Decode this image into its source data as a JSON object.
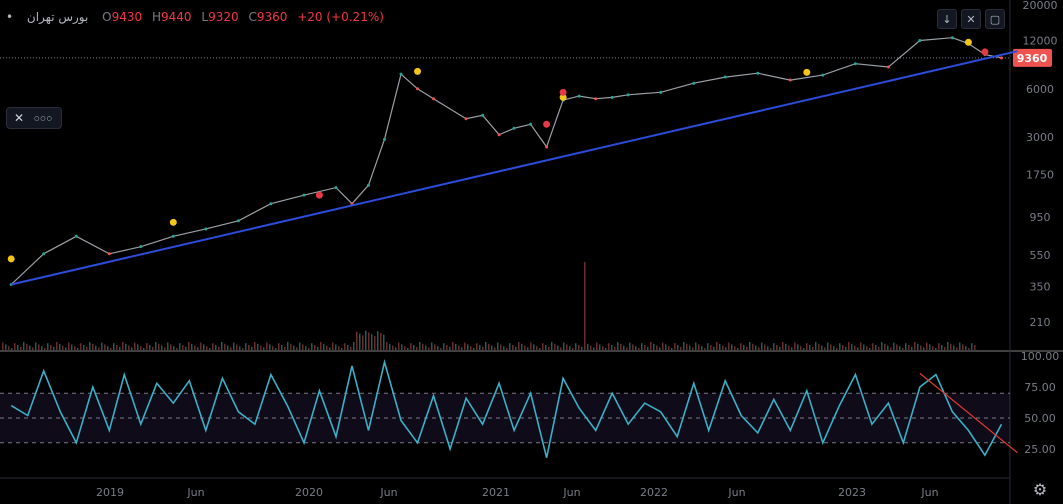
{
  "legend": {
    "symbol": "بورس تهران",
    "dot": "•",
    "open_label": "O",
    "open": "9430",
    "high_label": "H",
    "high": "9440",
    "low_label": "L",
    "low": "9320",
    "close_label": "C",
    "close": "9360",
    "change": "+20 (+0.21%)"
  },
  "toolbar": {
    "close_icon": "✕",
    "more_icon": "○○○"
  },
  "top_icons": {
    "down": "↓",
    "maximize": "✕",
    "square": "▢"
  },
  "settings_icon": "⚙",
  "colors": {
    "up": "#26a69a",
    "down": "#ef5350",
    "trendline": "#2c4cdb",
    "rsi": "#3ab0c8",
    "background": "#000000"
  },
  "chart_data": [
    {
      "type": "line",
      "scale": "log",
      "y_ticks": [
        "20000",
        "12000",
        "6000",
        "3000",
        "1750",
        "950",
        "550",
        "350",
        "210"
      ],
      "current_price": "9360",
      "x_ticks": [
        "2019",
        "Jun",
        "2020",
        "Jun",
        "2021",
        "Jun",
        "2022",
        "Jun",
        "2023",
        "Jun"
      ],
      "series": [
        {
          "x": [
            "2018-08",
            "2018-10",
            "2018-12",
            "2019-02",
            "2019-04",
            "2019-06",
            "2019-08",
            "2019-10",
            "2019-12",
            "2020-02",
            "2020-04",
            "2020-05",
            "2020-06",
            "2020-07",
            "2020-08",
            "2020-09",
            "2020-10",
            "2020-12",
            "2021-01",
            "2021-02",
            "2021-03",
            "2021-04",
            "2021-05",
            "2021-06",
            "2021-07",
            "2021-08",
            "2021-09",
            "2021-10",
            "2021-12",
            "2022-02",
            "2022-04",
            "2022-06",
            "2022-08",
            "2022-10",
            "2022-12",
            "2023-02",
            "2023-04",
            "2023-06",
            "2023-07",
            "2023-08",
            "2023-09"
          ],
          "values": [
            360,
            560,
            720,
            560,
            620,
            720,
            800,
            900,
            1150,
            1300,
            1450,
            1150,
            1500,
            2900,
            7400,
            6000,
            5200,
            3900,
            4100,
            3100,
            3400,
            3600,
            2600,
            5100,
            5400,
            5200,
            5300,
            5500,
            5700,
            6500,
            7100,
            7500,
            6800,
            7300,
            8600,
            8200,
            12000,
            12500,
            11500,
            9800,
            9360
          ]
        }
      ],
      "trendline": {
        "x": [
          "2018-08",
          "2023-10"
        ],
        "values": [
          360,
          10300
        ]
      },
      "markers": {
        "yellow": [
          [
            "2018-08",
            520
          ],
          [
            "2019-06",
            880
          ],
          [
            "2020-09",
            7700
          ],
          [
            "2021-06",
            5300
          ],
          [
            "2022-09",
            7600
          ],
          [
            "2023-07",
            11700
          ]
        ],
        "red": [
          [
            "2020-03",
            1300
          ],
          [
            "2021-06",
            5700
          ],
          [
            "2021-05",
            3600
          ],
          [
            "2023-08",
            10200
          ]
        ]
      }
    },
    {
      "type": "line",
      "y_ticks": [
        "100.00",
        "75.00",
        "50.00",
        "25.00"
      ],
      "ylim": [
        0,
        100
      ],
      "bands": [
        30,
        50,
        70
      ],
      "series": [
        {
          "x": [
            "2018-08",
            "2018-09",
            "2018-10",
            "2018-11",
            "2018-12",
            "2019-01",
            "2019-02",
            "2019-03",
            "2019-04",
            "2019-05",
            "2019-06",
            "2019-07",
            "2019-08",
            "2019-09",
            "2019-10",
            "2019-11",
            "2019-12",
            "2020-01",
            "2020-02",
            "2020-03",
            "2020-04",
            "2020-05",
            "2020-06",
            "2020-07",
            "2020-08",
            "2020-09",
            "2020-10",
            "2020-11",
            "2020-12",
            "2021-01",
            "2021-02",
            "2021-03",
            "2021-04",
            "2021-05",
            "2021-06",
            "2021-07",
            "2021-08",
            "2021-09",
            "2021-10",
            "2021-11",
            "2021-12",
            "2022-01",
            "2022-02",
            "2022-03",
            "2022-04",
            "2022-05",
            "2022-06",
            "2022-07",
            "2022-08",
            "2022-09",
            "2022-10",
            "2022-11",
            "2022-12",
            "2023-01",
            "2023-02",
            "2023-03",
            "2023-04",
            "2023-05",
            "2023-06",
            "2023-07",
            "2023-08",
            "2023-09"
          ],
          "values": [
            60,
            52,
            88,
            55,
            30,
            75,
            40,
            85,
            45,
            78,
            62,
            80,
            40,
            82,
            55,
            45,
            85,
            60,
            30,
            72,
            35,
            92,
            40,
            95,
            48,
            30,
            68,
            25,
            66,
            45,
            78,
            40,
            70,
            18,
            82,
            58,
            40,
            70,
            45,
            62,
            55,
            35,
            78,
            40,
            80,
            52,
            38,
            65,
            40,
            72,
            30,
            60,
            85,
            45,
            62,
            30,
            75,
            85,
            55,
            40,
            20,
            45
          ]
        }
      ],
      "trendline": {
        "x": [
          "2023-04",
          "2023-10"
        ],
        "values": [
          86,
          22
        ]
      }
    }
  ]
}
